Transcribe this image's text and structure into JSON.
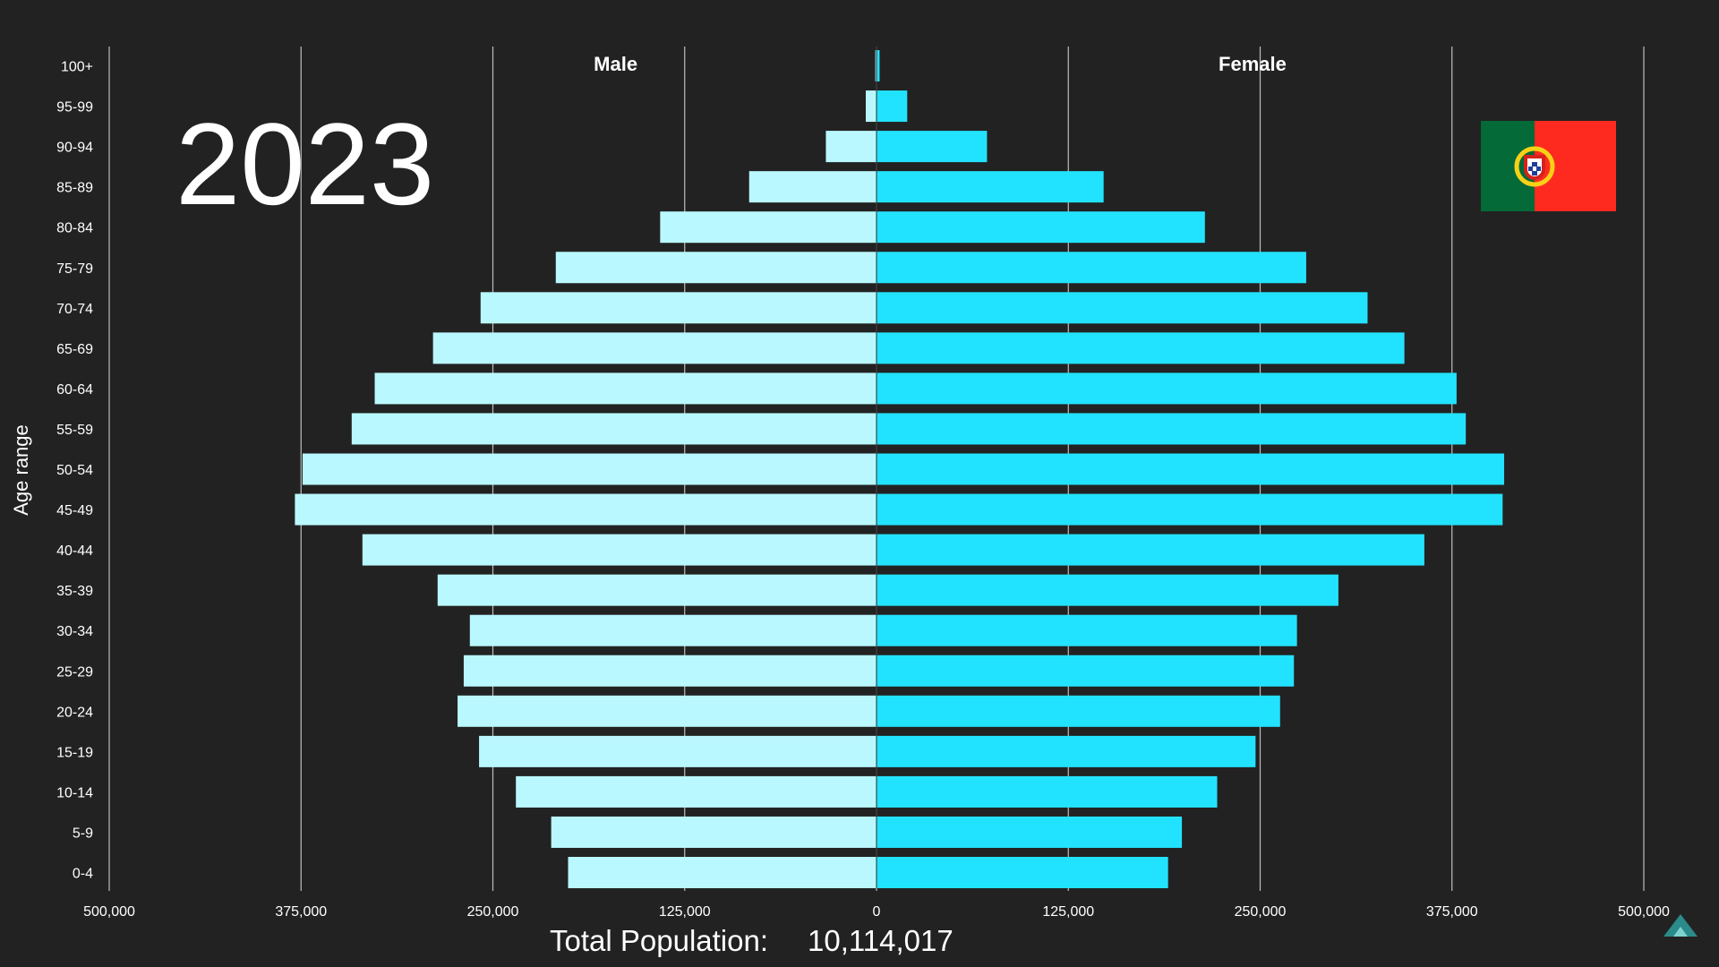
{
  "year": "2023",
  "total_population": {
    "label": "Total Population:",
    "value": "10,114,017"
  },
  "flag": {
    "name": "portugal-flag-icon",
    "green": "#046a38",
    "red": "#ff2a1f"
  },
  "colors": {
    "background": "#222222",
    "male_bar": "#baf8ff",
    "female_bar": "#22e3ff",
    "gridline": "#bdbdbd",
    "text": "#ffffff"
  },
  "chart_data": {
    "type": "bar",
    "orientation": "horizontal",
    "xlabel": "",
    "ylabel": "Age range",
    "grid": true,
    "xlim": [
      -500000,
      500000
    ],
    "x_ticks": [
      -500000,
      -375000,
      -250000,
      -125000,
      0,
      125000,
      250000,
      375000,
      500000
    ],
    "x_tick_labels": [
      "500,000",
      "375,000",
      "250,000",
      "125,000",
      "0",
      "125,000",
      "250,000",
      "375,000",
      "500,000"
    ],
    "categories": [
      "0-4",
      "5-9",
      "10-14",
      "15-19",
      "20-24",
      "25-29",
      "30-34",
      "35-39",
      "40-44",
      "45-49",
      "50-54",
      "55-59",
      "60-64",
      "65-69",
      "70-74",
      "75-79",
      "80-84",
      "85-89",
      "90-94",
      "95-99",
      "100+"
    ],
    "series": [
      {
        "name": "Male",
        "values": [
          201000,
          212000,
          235000,
          259000,
          273000,
          269000,
          265000,
          286000,
          335000,
          379000,
          374000,
          342000,
          327000,
          289000,
          258000,
          209000,
          141000,
          83000,
          33000,
          7000,
          800
        ]
      },
      {
        "name": "Female",
        "values": [
          190000,
          199000,
          222000,
          247000,
          263000,
          272000,
          274000,
          301000,
          357000,
          408000,
          409000,
          384000,
          378000,
          344000,
          320000,
          280000,
          214000,
          148000,
          72000,
          20000,
          2000
        ]
      }
    ]
  }
}
